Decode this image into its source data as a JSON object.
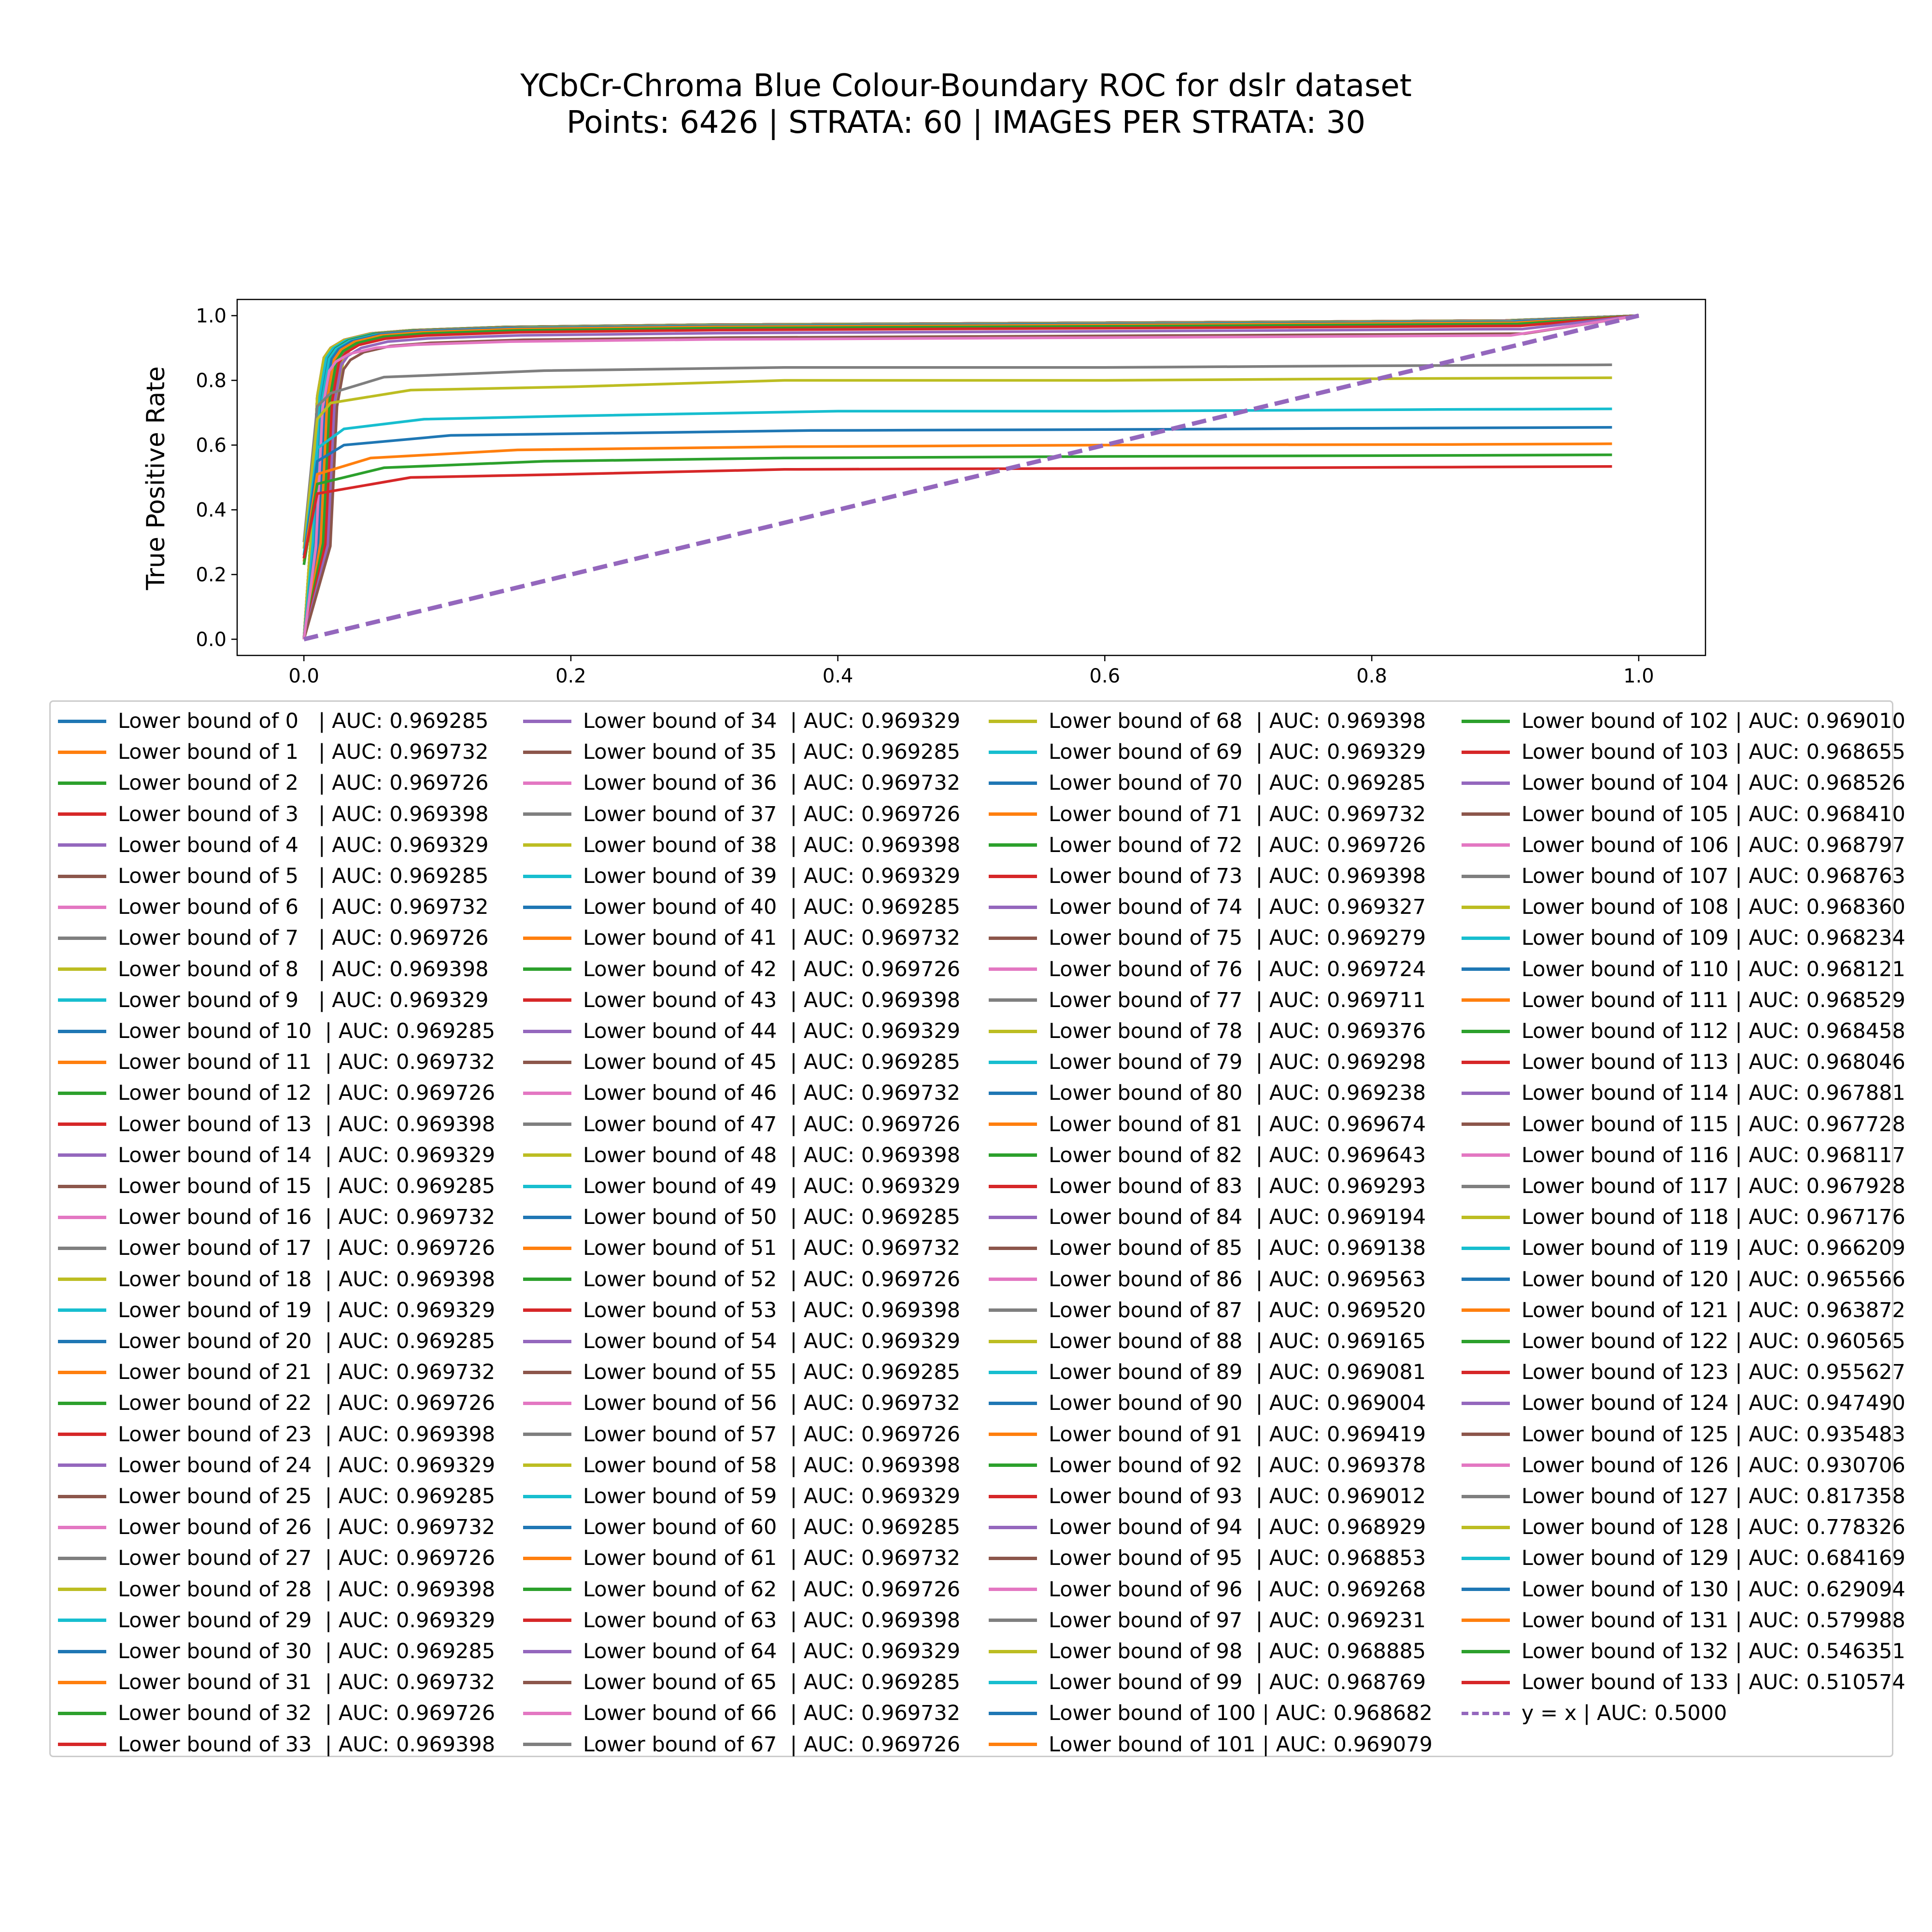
{
  "chart_data": {
    "type": "line",
    "title": "YCbCr-Chroma Blue Colour-Boundary ROC for dslr dataset",
    "subtitle": "Points: 6426 | STRATA: 60 | IMAGES PER STRATA: 30",
    "xlabel": "",
    "ylabel": "True Positive Rate",
    "xlim": [
      -0.05,
      1.05
    ],
    "ylim": [
      -0.05,
      1.05
    ],
    "x_ticks": [
      "0.0",
      "0.2",
      "0.4",
      "0.6",
      "0.8",
      "1.0"
    ],
    "y_ticks": [
      "0.0",
      "0.2",
      "0.4",
      "0.6",
      "0.8",
      "1.0"
    ],
    "grid": false,
    "legend_placement": "below",
    "palette": [
      "#1f77b4",
      "#ff7f0e",
      "#2ca02c",
      "#d62728",
      "#9467bd",
      "#8c564b",
      "#e377c2",
      "#7f7f7f",
      "#bcbd22",
      "#17becf"
    ],
    "auc_values": [
      "0.969285",
      "0.969732",
      "0.969726",
      "0.969398",
      "0.969329",
      "0.969285",
      "0.969732",
      "0.969726",
      "0.969398",
      "0.969329",
      "0.969285",
      "0.969732",
      "0.969726",
      "0.969398",
      "0.969329",
      "0.969285",
      "0.969732",
      "0.969726",
      "0.969398",
      "0.969329",
      "0.969285",
      "0.969732",
      "0.969726",
      "0.969398",
      "0.969329",
      "0.969285",
      "0.969732",
      "0.969726",
      "0.969398",
      "0.969329",
      "0.969285",
      "0.969732",
      "0.969726",
      "0.969398",
      "0.969329",
      "0.969285",
      "0.969732",
      "0.969726",
      "0.969398",
      "0.969329",
      "0.969285",
      "0.969732",
      "0.969726",
      "0.969398",
      "0.969329",
      "0.969285",
      "0.969732",
      "0.969726",
      "0.969398",
      "0.969329",
      "0.969285",
      "0.969732",
      "0.969726",
      "0.969398",
      "0.969329",
      "0.969285",
      "0.969732",
      "0.969726",
      "0.969398",
      "0.969329",
      "0.969285",
      "0.969732",
      "0.969726",
      "0.969398",
      "0.969329",
      "0.969285",
      "0.969732",
      "0.969726",
      "0.969398",
      "0.969329",
      "0.969285",
      "0.969732",
      "0.969726",
      "0.969398",
      "0.969327",
      "0.969279",
      "0.969724",
      "0.969711",
      "0.969376",
      "0.969298",
      "0.969238",
      "0.969674",
      "0.969643",
      "0.969293",
      "0.969194",
      "0.969138",
      "0.969563",
      "0.969520",
      "0.969165",
      "0.969081",
      "0.969004",
      "0.969419",
      "0.969378",
      "0.969012",
      "0.968929",
      "0.968853",
      "0.969268",
      "0.969231",
      "0.968885",
      "0.968769",
      "0.968682",
      "0.969079",
      "0.969010",
      "0.968655",
      "0.968526",
      "0.968410",
      "0.968797",
      "0.968763",
      "0.968360",
      "0.968234",
      "0.968121",
      "0.968529",
      "0.968458",
      "0.968046",
      "0.967881",
      "0.967728",
      "0.968117",
      "0.967928",
      "0.967176",
      "0.966209",
      "0.965566",
      "0.963872",
      "0.960565",
      "0.955627",
      "0.947490",
      "0.935483",
      "0.930706",
      "0.817358",
      "0.778326",
      "0.684169",
      "0.629094",
      "0.579988",
      "0.546351",
      "0.510574"
    ],
    "label_prefix": "Lower bound of ",
    "label_sep": "| AUC: ",
    "reference_series": {
      "label": "y = x | AUC: 0.5000",
      "color": "#9467bd",
      "x": [
        0,
        1
      ],
      "y": [
        0,
        1
      ]
    },
    "low_series": [
      {
        "bound": 127,
        "x": [
          0,
          0.01,
          0.02,
          0.06,
          0.18,
          0.36,
          0.6,
          0.8,
          0.98
        ],
        "y": [
          0.3,
          0.72,
          0.76,
          0.81,
          0.83,
          0.84,
          0.84,
          0.845,
          0.848
        ]
      },
      {
        "bound": 128,
        "x": [
          0,
          0.01,
          0.02,
          0.08,
          0.2,
          0.36,
          0.6,
          0.8,
          0.98
        ],
        "y": [
          0.28,
          0.68,
          0.73,
          0.77,
          0.78,
          0.8,
          0.8,
          0.805,
          0.808
        ]
      },
      {
        "bound": 129,
        "x": [
          0,
          0.01,
          0.03,
          0.09,
          0.2,
          0.4,
          0.6,
          0.85,
          0.98
        ],
        "y": [
          0.26,
          0.59,
          0.65,
          0.68,
          0.69,
          0.705,
          0.705,
          0.71,
          0.712
        ]
      },
      {
        "bound": 130,
        "x": [
          0,
          0.01,
          0.03,
          0.11,
          0.2,
          0.38,
          0.6,
          0.8,
          0.98
        ],
        "y": [
          0.25,
          0.55,
          0.6,
          0.63,
          0.635,
          0.645,
          0.648,
          0.652,
          0.655
        ]
      },
      {
        "bound": 131,
        "x": [
          0,
          0.01,
          0.05,
          0.16,
          0.36,
          0.6,
          0.86,
          0.98
        ],
        "y": [
          0.24,
          0.51,
          0.56,
          0.585,
          0.595,
          0.6,
          0.602,
          0.604
        ]
      },
      {
        "bound": 132,
        "x": [
          0,
          0.01,
          0.06,
          0.18,
          0.36,
          0.6,
          0.86,
          0.98
        ],
        "y": [
          0.23,
          0.48,
          0.53,
          0.55,
          0.56,
          0.565,
          0.568,
          0.57
        ]
      },
      {
        "bound": 133,
        "x": [
          0,
          0.01,
          0.08,
          0.2,
          0.36,
          0.6,
          0.86,
          0.98
        ],
        "y": [
          0.25,
          0.45,
          0.5,
          0.51,
          0.525,
          0.528,
          0.532,
          0.534
        ]
      }
    ],
    "high_series_shape": {
      "x": [
        0,
        0.005,
        0.01,
        0.015,
        0.02,
        0.03,
        0.05,
        0.08,
        0.15,
        0.3,
        0.5,
        0.7,
        0.9,
        1.0
      ],
      "y": [
        0,
        0.3,
        0.75,
        0.87,
        0.9,
        0.925,
        0.945,
        0.955,
        0.965,
        0.972,
        0.976,
        0.98,
        0.985,
        1.0
      ]
    }
  }
}
